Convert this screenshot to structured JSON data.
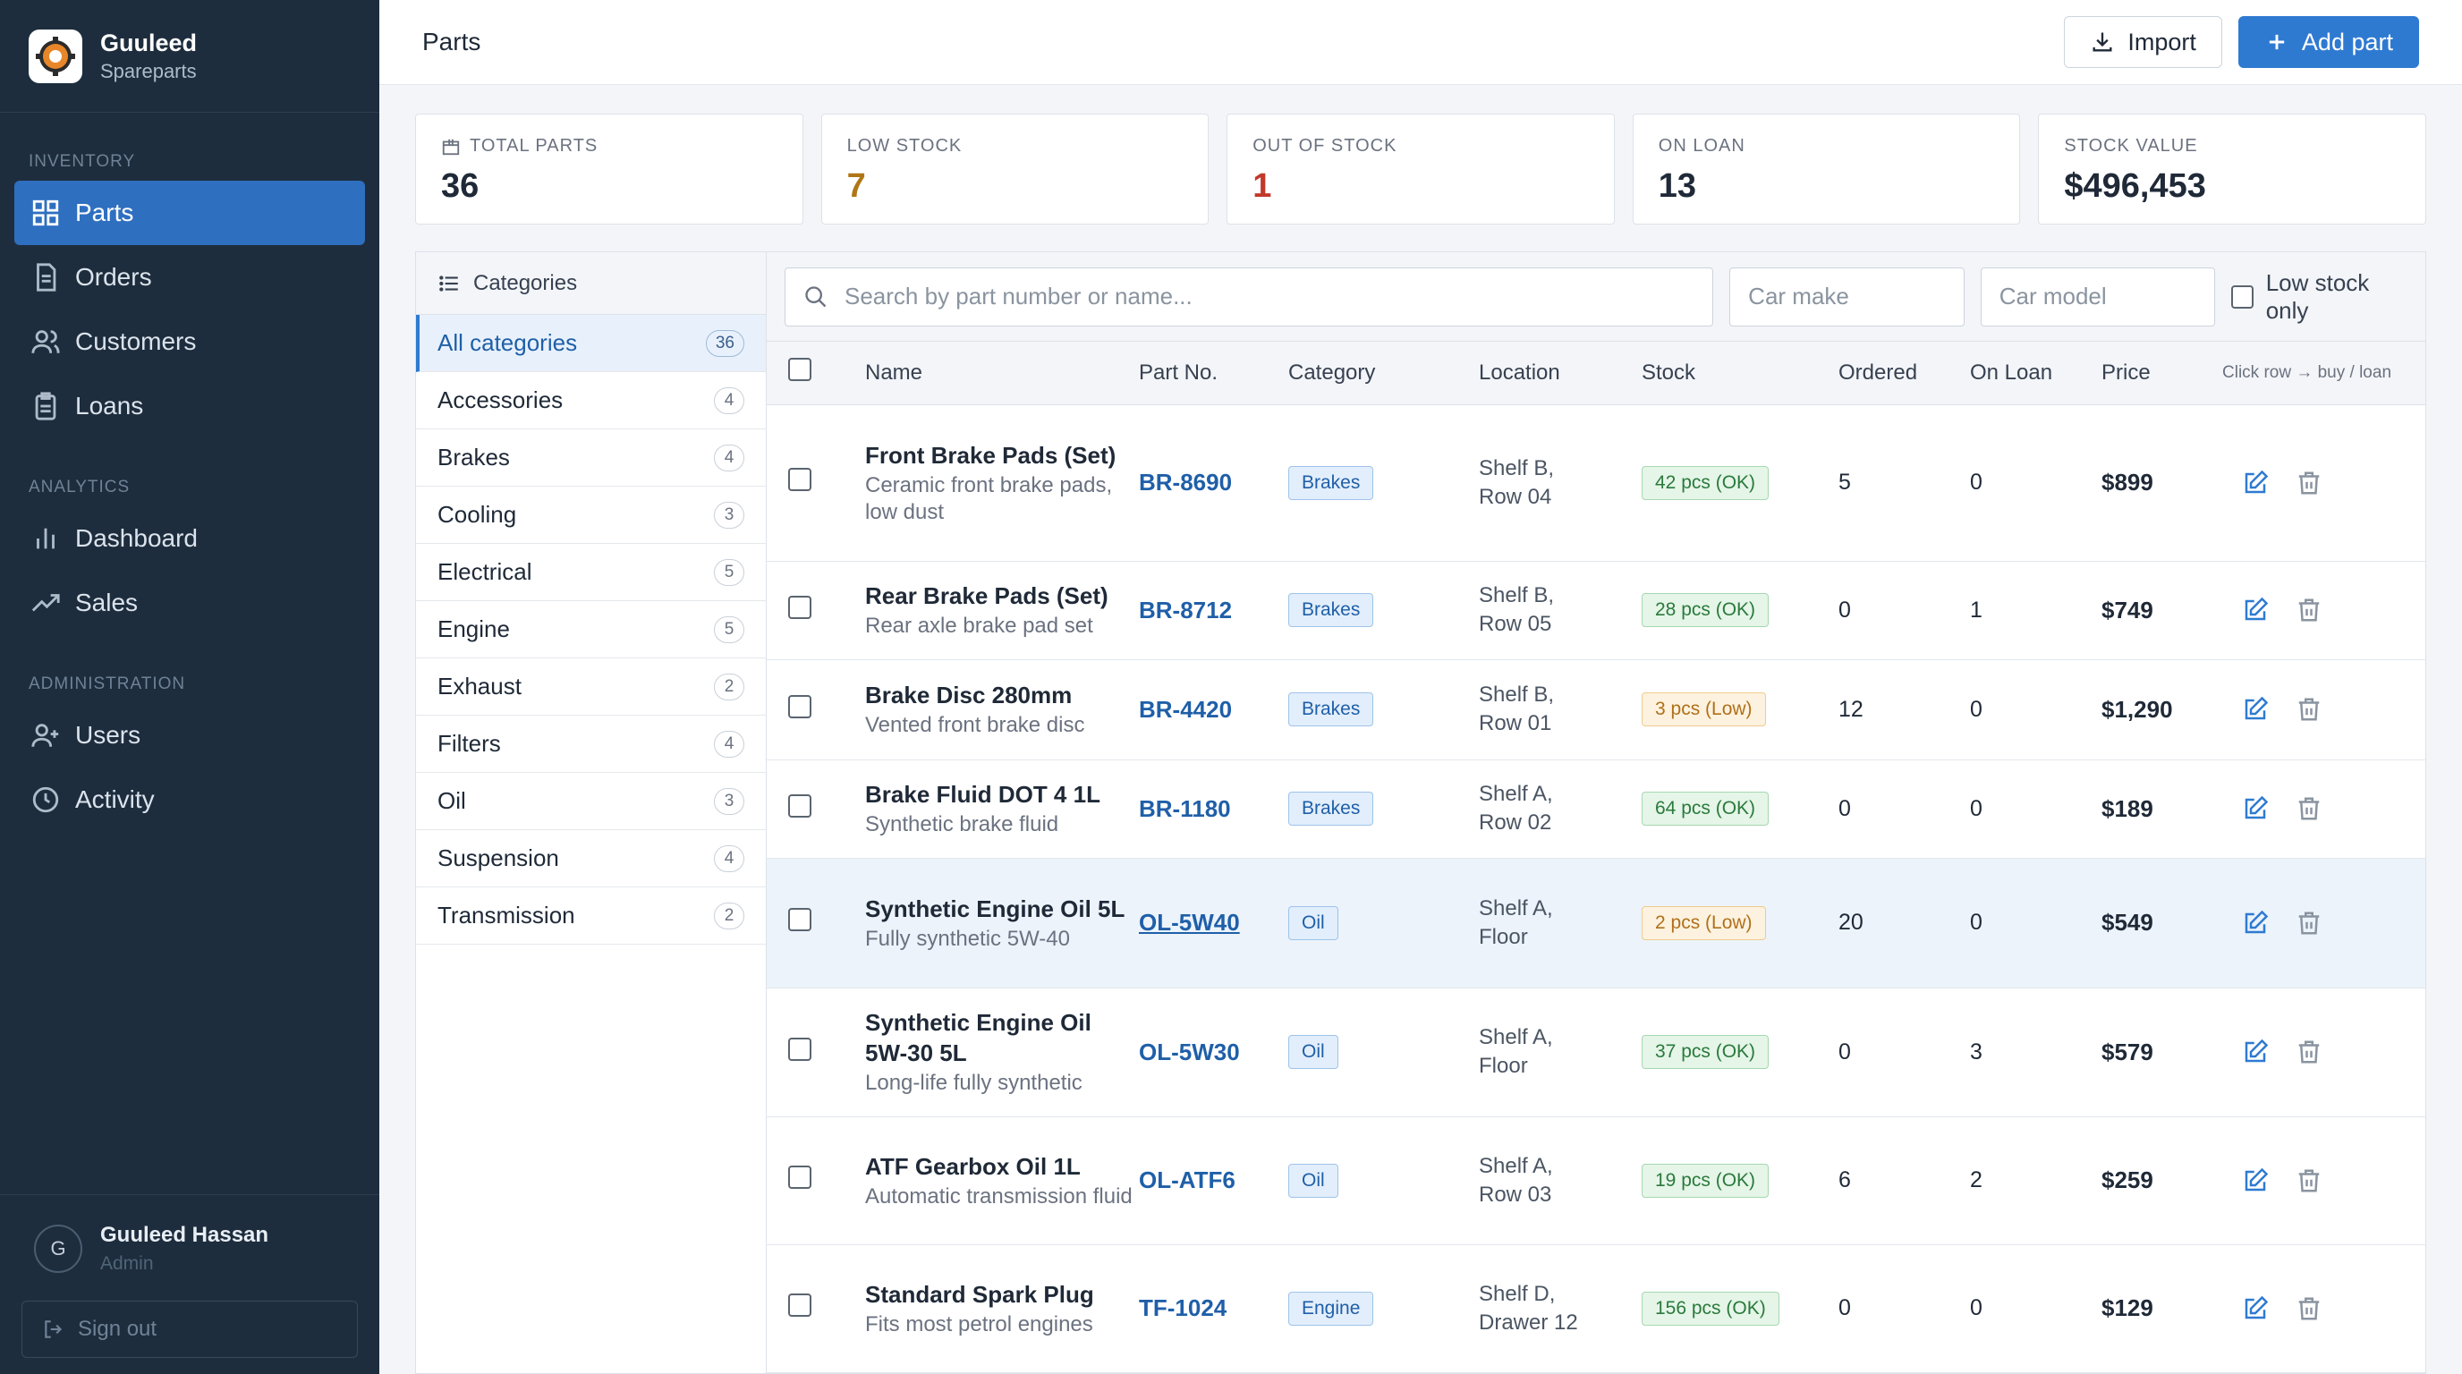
{
  "brand": {
    "name": "Guuleed",
    "sub": "Spareparts"
  },
  "nav": {
    "inventory_label": "INVENTORY",
    "analytics_label": "ANALYTICS",
    "admin_label": "ADMINISTRATION",
    "parts": "Parts",
    "orders": "Orders",
    "customers": "Customers",
    "loans": "Loans",
    "dashboard": "Dashboard",
    "sales": "Sales",
    "users": "Users",
    "activity": "Activity"
  },
  "user": {
    "initial": "G",
    "name": "Guuleed Hassan",
    "role": "Admin",
    "signout": "Sign out"
  },
  "topbar": {
    "title": "Parts",
    "import": "Import",
    "add": "Add part"
  },
  "stats": [
    {
      "label": "TOTAL PARTS",
      "value": "36"
    },
    {
      "label": "LOW STOCK",
      "value": "7"
    },
    {
      "label": "OUT OF STOCK",
      "value": "1"
    },
    {
      "label": "ON LOAN",
      "value": "13"
    },
    {
      "label": "STOCK VALUE",
      "value": "$496,453"
    }
  ],
  "categories": {
    "header": "Categories",
    "items": [
      {
        "label": "All categories",
        "count": "36"
      },
      {
        "label": "Accessories",
        "count": "4"
      },
      {
        "label": "Brakes",
        "count": "4"
      },
      {
        "label": "Cooling",
        "count": "3"
      },
      {
        "label": "Electrical",
        "count": "5"
      },
      {
        "label": "Engine",
        "count": "5"
      },
      {
        "label": "Exhaust",
        "count": "2"
      },
      {
        "label": "Filters",
        "count": "4"
      },
      {
        "label": "Oil",
        "count": "3"
      },
      {
        "label": "Suspension",
        "count": "4"
      },
      {
        "label": "Transmission",
        "count": "2"
      }
    ]
  },
  "filters": {
    "search_placeholder": "Search by part number or name...",
    "make_placeholder": "Car make",
    "model_placeholder": "Car model",
    "low_stock": "Low stock only"
  },
  "table": {
    "headers": {
      "name": "Name",
      "part_no": "Part No.",
      "category": "Category",
      "location": "Location",
      "stock": "Stock",
      "ordered": "Ordered",
      "on_loan": "On Loan",
      "price": "Price",
      "hint": "Click row → buy / loan"
    },
    "rows": [
      {
        "name": "Front Brake Pads (Set)",
        "desc": "Ceramic front brake pads, low dust",
        "pn": "BR-8690",
        "cat": "Brakes",
        "loc1": "Shelf B,",
        "loc2": "Row 04",
        "stock": "42 pcs (OK)",
        "status": "ok",
        "ordered": "5",
        "loan": "0",
        "price": "$899"
      },
      {
        "name": "Rear Brake Pads (Set)",
        "desc": "Rear axle brake pad set",
        "pn": "BR-8712",
        "cat": "Brakes",
        "loc1": "Shelf B,",
        "loc2": "Row 05",
        "stock": "28 pcs (OK)",
        "status": "ok",
        "ordered": "0",
        "loan": "1",
        "price": "$749"
      },
      {
        "name": "Brake Disc 280mm",
        "desc": "Vented front brake disc",
        "pn": "BR-4420",
        "cat": "Brakes",
        "loc1": "Shelf B,",
        "loc2": "Row 01",
        "stock": "3 pcs (Low)",
        "status": "low",
        "ordered": "12",
        "loan": "0",
        "price": "$1,290"
      },
      {
        "name": "Brake Fluid DOT 4 1L",
        "desc": "Synthetic brake fluid",
        "pn": "BR-1180",
        "cat": "Brakes",
        "loc1": "Shelf A,",
        "loc2": "Row 02",
        "stock": "64 pcs (OK)",
        "status": "ok",
        "ordered": "0",
        "loan": "0",
        "price": "$189"
      },
      {
        "name": "Synthetic Engine Oil 5L",
        "desc": "Fully synthetic 5W-40",
        "pn": "OL-5W40",
        "cat": "Oil",
        "loc1": "Shelf A,",
        "loc2": "Floor",
        "stock": "2 pcs (Low)",
        "status": "low",
        "ordered": "20",
        "loan": "0",
        "price": "$549"
      },
      {
        "name": "Synthetic Engine Oil 5W-30 5L",
        "desc": "Long-life fully synthetic",
        "pn": "OL-5W30",
        "cat": "Oil",
        "loc1": "Shelf A,",
        "loc2": "Floor",
        "stock": "37 pcs (OK)",
        "status": "ok",
        "ordered": "0",
        "loan": "3",
        "price": "$579"
      },
      {
        "name": "ATF Gearbox Oil 1L",
        "desc": "Automatic transmission fluid",
        "pn": "OL-ATF6",
        "cat": "Oil",
        "loc1": "Shelf A,",
        "loc2": "Row 03",
        "stock": "19 pcs (OK)",
        "status": "ok",
        "ordered": "6",
        "loan": "2",
        "price": "$259"
      },
      {
        "name": "Standard Spark Plug",
        "desc": "Fits most petrol engines",
        "pn": "TF-1024",
        "cat": "Engine",
        "loc1": "Shelf D,",
        "loc2": "Drawer 12",
        "stock": "156 pcs (OK)",
        "status": "ok",
        "ordered": "0",
        "loan": "0",
        "price": "$129"
      }
    ]
  },
  "colors": {
    "sidebar": "#1e2d3d",
    "accent": "#2f7ad1",
    "low": "#b07615",
    "out": "#c0392b"
  }
}
